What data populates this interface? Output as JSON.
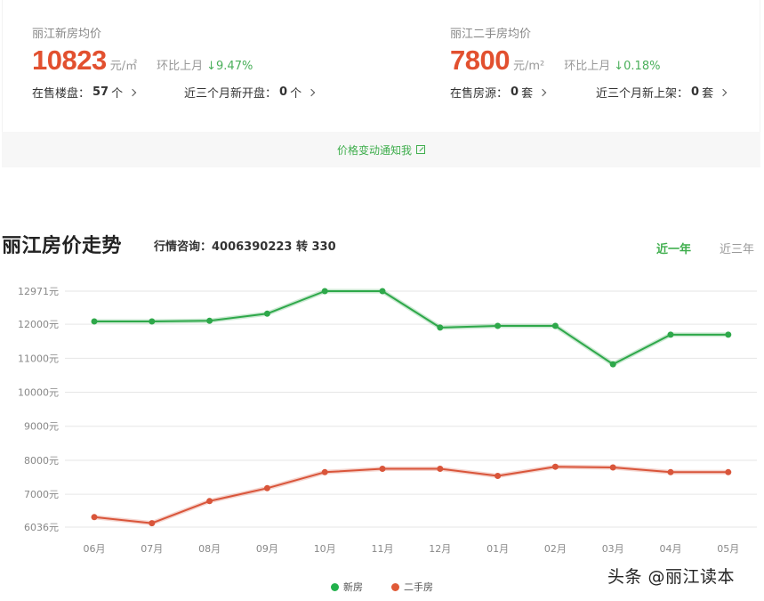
{
  "summary": {
    "new_house": {
      "title": "丽江新房均价",
      "price": "10823",
      "unit": "元/㎡",
      "mom_label": "环比上月",
      "mom_value": "↓9.47%",
      "links": [
        {
          "label": "在售楼盘：",
          "value": "57",
          "suffix": "个"
        },
        {
          "label": "近三个月新开盘：",
          "value": "0",
          "suffix": "个"
        }
      ]
    },
    "second_hand": {
      "title": "丽江二手房均价",
      "price": "7800",
      "unit": "元/m²",
      "mom_label": "环比上月",
      "mom_value": "↓0.18%",
      "links": [
        {
          "label": "在售房源：",
          "value": "0",
          "suffix": "套"
        },
        {
          "label": "近三个月新上架：",
          "value": "0",
          "suffix": "套"
        }
      ]
    }
  },
  "notify": {
    "label": "价格变动通知我",
    "icon": "external-link-icon"
  },
  "trend": {
    "title": "丽江房价走势",
    "hotline": "行情咨询：4006390223 转 330",
    "tabs": [
      {
        "label": "近一年",
        "active": true
      },
      {
        "label": "近三年",
        "active": false
      }
    ]
  },
  "colors": {
    "new_house": "#2ea84a",
    "second_hand": "#d9553a",
    "accent_green": "#3fae4d",
    "price_red": "#e2502f",
    "grid": "#e6e6e6"
  },
  "chart_data": {
    "type": "line",
    "title": "丽江房价走势",
    "xlabel": "",
    "ylabel": "",
    "categories": [
      "06月",
      "07月",
      "08月",
      "09月",
      "10月",
      "11月",
      "12月",
      "01月",
      "02月",
      "03月",
      "04月",
      "05月"
    ],
    "series": [
      {
        "name": "新房",
        "color": "#2ea84a",
        "values": [
          12080,
          12080,
          12100,
          12310,
          12971,
          12971,
          11900,
          11950,
          11950,
          10823,
          11690,
          11690
        ]
      },
      {
        "name": "二手房",
        "color": "#d9553a",
        "values": [
          6330,
          6150,
          6800,
          7180,
          7650,
          7750,
          7750,
          7540,
          7810,
          7790,
          7650,
          7650
        ]
      }
    ],
    "y_ticks": [
      "12971元",
      "12000元",
      "11000元",
      "10000元",
      "9000元",
      "8000元",
      "7000元",
      "6036元"
    ],
    "y_tick_values": [
      12971,
      12000,
      11000,
      10000,
      9000,
      8000,
      7000,
      6036
    ],
    "ylim": [
      6036,
      12971
    ],
    "grid": true,
    "legend_position": "bottom"
  },
  "legend": [
    {
      "label": "新房",
      "color": "#2ea84a"
    },
    {
      "label": "二手房",
      "color": "#e05a37"
    }
  ],
  "watermark": "头条 @丽江读本"
}
